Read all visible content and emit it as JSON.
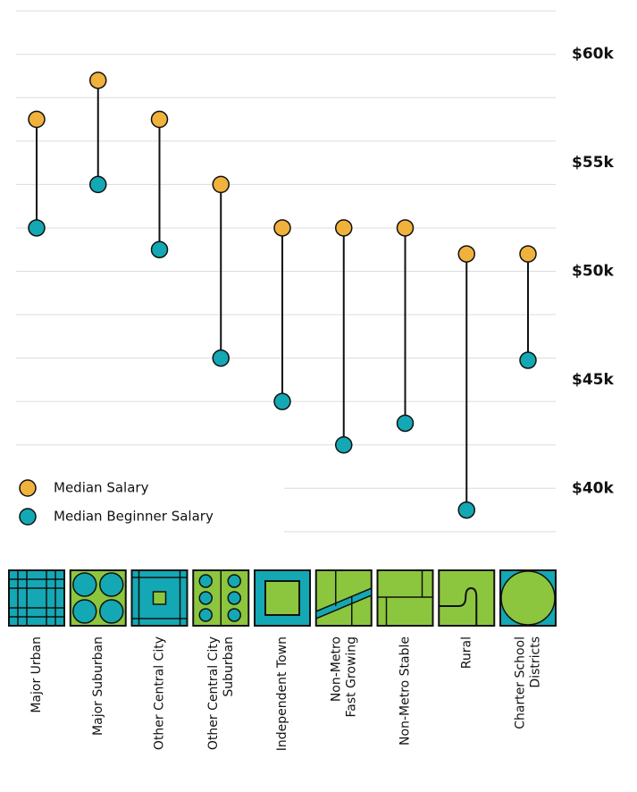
{
  "chart_data": {
    "type": "dumbbell",
    "categories": [
      [
        "Major Urban"
      ],
      [
        "Major Suburban"
      ],
      [
        "Other Central City"
      ],
      [
        "Other Central City",
        "Suburban"
      ],
      [
        "Independent Town"
      ],
      [
        "Non-Metro",
        "Fast Growing"
      ],
      [
        "Non-Metro Stable"
      ],
      [
        "Rural"
      ],
      [
        "Charter School",
        "Districts"
      ]
    ],
    "series": [
      {
        "name": "Median Salary",
        "color": "#f0b23c",
        "values": [
          57,
          58.8,
          57,
          54,
          52,
          52,
          52,
          50.8,
          50.8
        ]
      },
      {
        "name": "Median Beginner Salary",
        "color": "#13a8b4",
        "values": [
          52,
          54,
          51,
          46,
          44,
          42,
          43,
          39,
          45.9
        ]
      }
    ],
    "ylim": [
      37.5,
      62.5
    ],
    "yticks": [
      {
        "value": 40,
        "label": "$40k"
      },
      {
        "value": 45,
        "label": "$45k"
      },
      {
        "value": 50,
        "label": "$50k"
      },
      {
        "value": 55,
        "label": "$55k"
      },
      {
        "value": 60,
        "label": "$60k"
      }
    ],
    "ygrid": [
      38,
      40,
      42,
      44,
      46,
      48,
      50,
      52,
      54,
      56,
      58,
      60,
      62
    ],
    "legend": "bottom-left"
  }
}
